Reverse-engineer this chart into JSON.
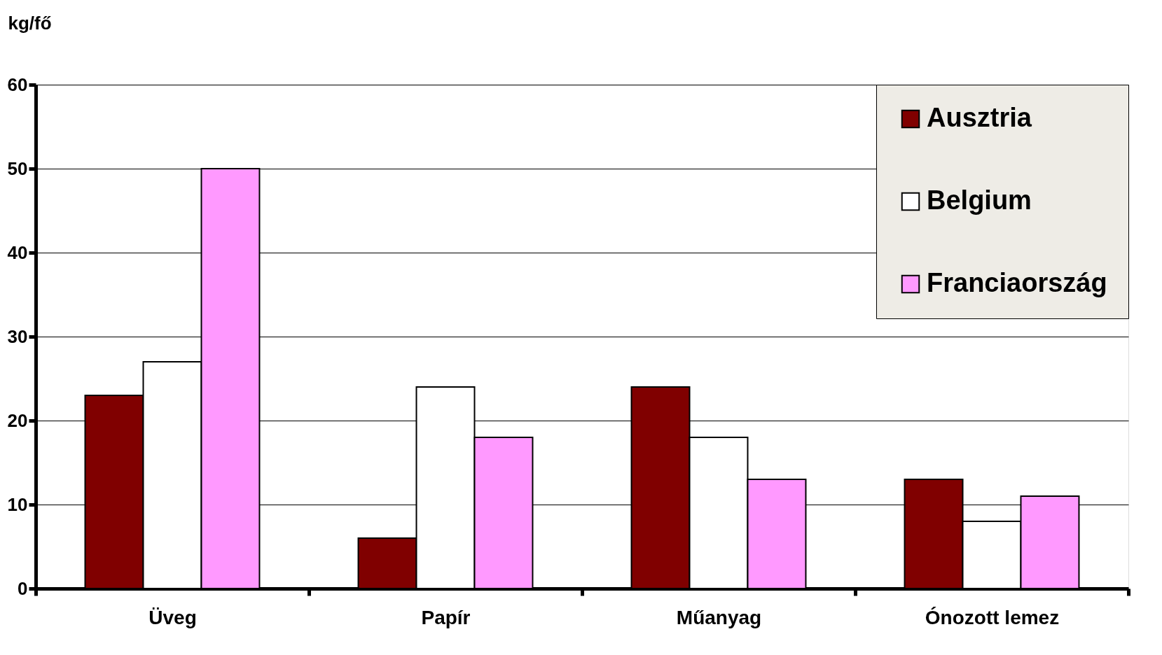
{
  "chart_data": {
    "type": "bar",
    "ylabel": "kg/fő",
    "categories": [
      "Üveg",
      "Papír",
      "Műanyag",
      "Ónozott lemez"
    ],
    "series": [
      {
        "name": "Ausztria",
        "color": "#800000",
        "values": [
          23,
          6,
          24,
          13
        ]
      },
      {
        "name": "Belgium",
        "color": "#ffffff",
        "values": [
          27,
          24,
          18,
          8
        ]
      },
      {
        "name": "Franciaország",
        "color": "#ff99ff",
        "values": [
          50,
          18,
          13,
          11
        ]
      }
    ],
    "ylim": [
      0,
      60
    ],
    "yticks": [
      0,
      10,
      20,
      30,
      40,
      50,
      60
    ],
    "grid": "y",
    "legend": "top right"
  }
}
